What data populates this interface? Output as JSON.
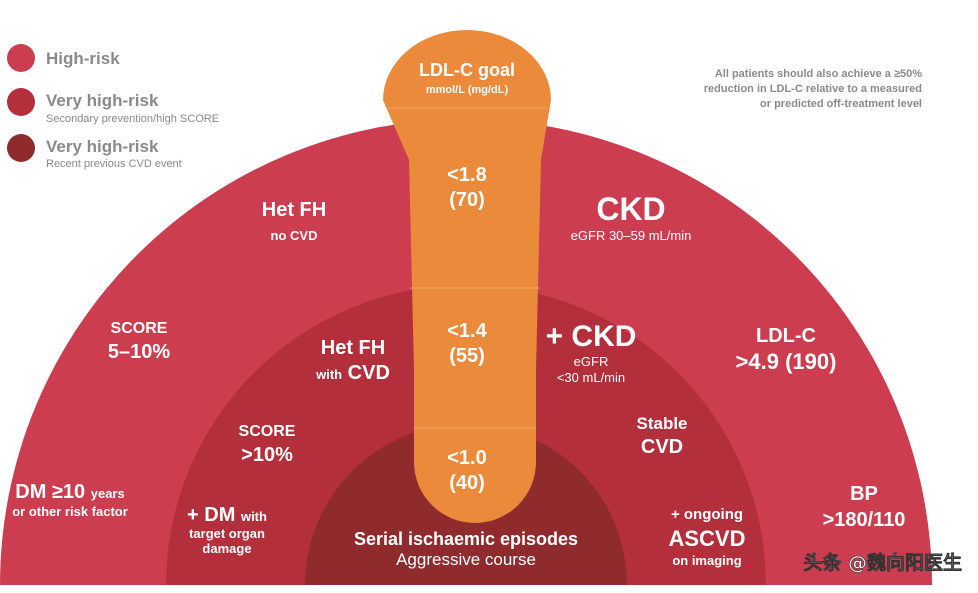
{
  "colors": {
    "high_risk": "#cc3d4f",
    "very_high_risk": "#b32f3b",
    "very_high_risk_recent": "#8f2b2d",
    "goal_bar": "#ea8a3a",
    "text_grey": "#8a8a8a",
    "white": "#ffffff"
  },
  "legend": [
    {
      "label": "High-risk",
      "sub": "",
      "color": "#cc3d4f"
    },
    {
      "label": "Very high-risk",
      "sub": "Secondary prevention/high SCORE",
      "color": "#b32f3b"
    },
    {
      "label": "Very high-risk",
      "sub": "Recent previous CVD event",
      "color": "#8f2b2d"
    }
  ],
  "note": {
    "line1": "All patients should also achieve a ≥50%",
    "line2": "reduction in LDL-C relative to a measured",
    "line3": "or predicted off-treatment level"
  },
  "goal": {
    "title": "LDL-C goal",
    "unit": "mmol/L (mg/dL)",
    "levels": [
      {
        "value": "<1.8",
        "mgdl": "(70)"
      },
      {
        "value": "<1.4",
        "mgdl": "(55)"
      },
      {
        "value": "<1.0",
        "mgdl": "(40)"
      }
    ]
  },
  "outer_ring": {
    "hetfh_title": "Het FH",
    "hetfh_sub": "no CVD",
    "ckd_title": "CKD",
    "ckd_sub": "eGFR 30–59 mL/min",
    "score_title": "SCORE",
    "score_value": "5–10%",
    "ldlc_title": "LDL-C",
    "ldlc_value": ">4.9 (190)",
    "dm_main": "DM ≥10",
    "dm_years": "years",
    "dm_sub": "or other risk factor",
    "bp_title": "BP",
    "bp_value": ">180/110"
  },
  "middle_ring": {
    "hetfh_title": "Het FH",
    "hetfh_with": "with",
    "hetfh_cvd": "CVD",
    "ckd_title": "+ CKD",
    "ckd_sub1": "eGFR",
    "ckd_sub2": "<30 mL/min",
    "score_title": "SCORE",
    "score_value": ">10%",
    "stable_1": "Stable",
    "stable_2": "CVD",
    "dm_main": "+ DM",
    "dm_with": "with",
    "dm_sub1": "target organ",
    "dm_sub2": "damage",
    "ascvd_1": "+ ongoing",
    "ascvd_2": "ASCVD",
    "ascvd_3": "on imaging"
  },
  "inner_ring": {
    "line1": "Serial ischaemic episodes",
    "line2": "Aggressive course"
  },
  "watermark": "头条 @魏向阳医生"
}
